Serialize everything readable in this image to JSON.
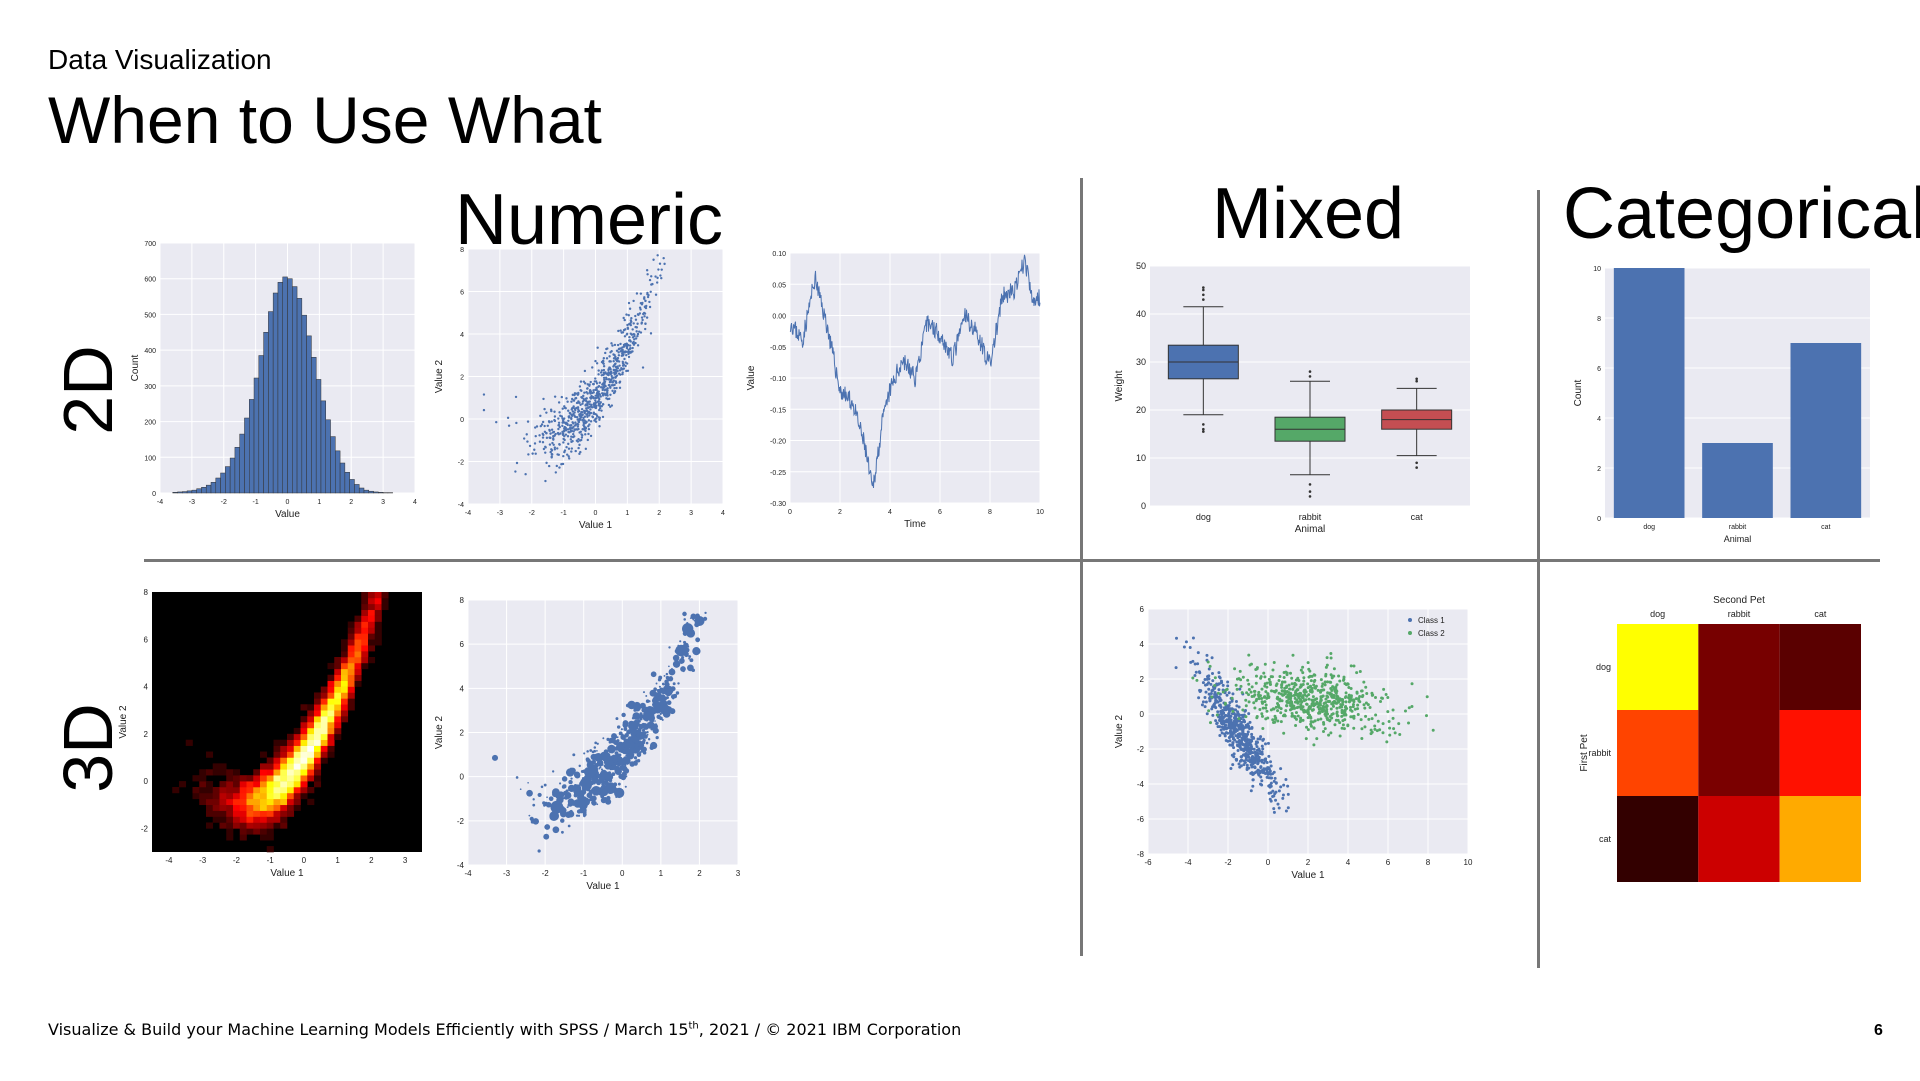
{
  "header": {
    "eyebrow": "Data Visualization",
    "title": "When to Use What"
  },
  "sections": {
    "numeric": "Numeric",
    "mixed": "Mixed",
    "categorical": "Categorical"
  },
  "rows": {
    "d2": "2D",
    "d3": "3D"
  },
  "footer": {
    "text_pre": "Visualize & Build your Machine Learning Models Efficiently with SPSS / March 15",
    "text_sup": "th",
    "text_post": ", 2021 / © 2021 IBM Corporation",
    "page": "6"
  },
  "colors": {
    "seaborn_blue": "#4c72b0",
    "seaborn_green": "#55a868",
    "seaborn_red": "#c44e52",
    "panel_bg": "#eaeaf2",
    "divider": "#777777"
  },
  "chart_data": [
    {
      "id": "histogram",
      "type": "bar",
      "xlabel": "Value",
      "ylabel": "Count",
      "xlim": [
        -4,
        4
      ],
      "ylim": [
        0,
        700
      ],
      "xticks": [
        "-4",
        "-3",
        "-2",
        "-1",
        "0",
        "1",
        "2",
        "3",
        "4"
      ],
      "yticks": [
        "0",
        "100",
        "200",
        "300",
        "400",
        "500",
        "600",
        "700"
      ],
      "bin_start": -3.6,
      "bin_width": 0.15,
      "values": [
        2,
        3,
        4,
        6,
        8,
        12,
        16,
        22,
        30,
        42,
        56,
        74,
        98,
        128,
        165,
        210,
        262,
        322,
        385,
        450,
        508,
        560,
        590,
        605,
        600,
        578,
        545,
        498,
        440,
        380,
        318,
        258,
        205,
        158,
        118,
        84,
        58,
        38,
        24,
        14,
        8,
        5,
        3,
        2,
        1,
        1,
        0,
        0
      ],
      "grid": true
    },
    {
      "id": "scatter-numeric",
      "type": "scatter",
      "xlabel": "Value 1",
      "ylabel": "Value 2",
      "xlim": [
        -4,
        4
      ],
      "ylim": [
        -4,
        8
      ],
      "xticks": [
        "-4",
        "-3",
        "-2",
        "-1",
        "0",
        "1",
        "2",
        "3",
        "4"
      ],
      "yticks": [
        "-4",
        "-2",
        "0",
        "2",
        "4",
        "6",
        "8"
      ],
      "relationship": "y ≈ 0.5·(x+2)² − 1 with noise, n≈800",
      "grid": true
    },
    {
      "id": "time-series",
      "type": "line",
      "xlabel": "Time",
      "ylabel": "Value",
      "xlim": [
        0,
        10
      ],
      "ylim": [
        -0.3,
        0.1
      ],
      "xticks": [
        "0",
        "2",
        "4",
        "6",
        "8",
        "10"
      ],
      "yticks": [
        "0.10",
        "0.05",
        "0.00",
        "-0.05",
        "-0.10",
        "-0.15",
        "-0.20",
        "-0.25",
        "-0.30"
      ],
      "anchors": [
        [
          0,
          -0.01
        ],
        [
          0.5,
          -0.04
        ],
        [
          1.0,
          0.06
        ],
        [
          1.5,
          -0.02
        ],
        [
          2.0,
          -0.12
        ],
        [
          2.5,
          -0.14
        ],
        [
          3.0,
          -0.21
        ],
        [
          3.3,
          -0.28
        ],
        [
          3.7,
          -0.17
        ],
        [
          4.0,
          -0.12
        ],
        [
          4.5,
          -0.07
        ],
        [
          5.0,
          -0.1
        ],
        [
          5.5,
          -0.01
        ],
        [
          6.0,
          -0.03
        ],
        [
          6.5,
          -0.07
        ],
        [
          7.0,
          0.0
        ],
        [
          7.5,
          -0.03
        ],
        [
          8.0,
          -0.08
        ],
        [
          8.5,
          0.03
        ],
        [
          9.0,
          0.04
        ],
        [
          9.4,
          0.09
        ],
        [
          9.7,
          0.02
        ],
        [
          10.0,
          0.03
        ]
      ],
      "grid": true
    },
    {
      "id": "boxplot",
      "type": "box",
      "xlabel": "Animal",
      "ylabel": "Weight",
      "ylim": [
        0,
        50
      ],
      "yticks": [
        "0",
        "10",
        "20",
        "30",
        "40",
        "50"
      ],
      "categories": [
        "dog",
        "rabbit",
        "cat"
      ],
      "boxes": [
        {
          "q1": 26.5,
          "median": 30,
          "q3": 33.5,
          "whisker_low": 19,
          "whisker_high": 41.5,
          "outliers": [
            16,
            15.5,
            17,
            43,
            44,
            45,
            45.5
          ],
          "color": "#4c72b0"
        },
        {
          "q1": 13.5,
          "median": 16,
          "q3": 18.5,
          "whisker_low": 6.5,
          "whisker_high": 26,
          "outliers": [
            4.5,
            3,
            2,
            27,
            28
          ],
          "color": "#55a868"
        },
        {
          "q1": 16,
          "median": 18,
          "q3": 20,
          "whisker_low": 10.5,
          "whisker_high": 24.5,
          "outliers": [
            9,
            8,
            26,
            26.5
          ],
          "color": "#c44e52"
        }
      ],
      "grid": true
    },
    {
      "id": "bar-categorical",
      "type": "bar",
      "xlabel": "Animal",
      "ylabel": "Count",
      "ylim": [
        0,
        10
      ],
      "yticks": [
        "0",
        "2",
        "4",
        "6",
        "8",
        "10"
      ],
      "categories": [
        "dog",
        "rabbit",
        "cat"
      ],
      "values": [
        10,
        3,
        7
      ],
      "grid": true
    },
    {
      "id": "hexbin-density",
      "type": "heatmap",
      "xlabel": "Value 1",
      "ylabel": "Value 2",
      "xlim": [
        -4.5,
        3.5
      ],
      "ylim": [
        -3,
        8
      ],
      "xticks": [
        "-4",
        "-3",
        "-2",
        "-1",
        "0",
        "1",
        "2",
        "3"
      ],
      "yticks": [
        "-2",
        "0",
        "2",
        "4",
        "6",
        "8"
      ],
      "colormap": "hot",
      "grid": false
    },
    {
      "id": "bubble-scatter",
      "type": "scatter",
      "xlabel": "Value 1",
      "ylabel": "Value 2",
      "xlim": [
        -4,
        3
      ],
      "ylim": [
        -4,
        8
      ],
      "xticks": [
        "-4",
        "-3",
        "-2",
        "-1",
        "0",
        "1",
        "2",
        "3"
      ],
      "yticks": [
        "-4",
        "-2",
        "0",
        "2",
        "4",
        "6",
        "8"
      ],
      "relationship": "same relationship as numeric scatter, point size encodes third variable",
      "grid": true
    },
    {
      "id": "class-scatter",
      "type": "scatter",
      "xlabel": "Value 1",
      "ylabel": "Value 2",
      "xlim": [
        -6,
        10
      ],
      "ylim": [
        -8,
        6
      ],
      "xticks": [
        "-6",
        "-4",
        "-2",
        "0",
        "2",
        "4",
        "6",
        "8",
        "10"
      ],
      "yticks": [
        "-8",
        "-6",
        "-4",
        "-2",
        "0",
        "2",
        "4",
        "6"
      ],
      "series": [
        {
          "name": "Class 1",
          "color": "#4c72b0",
          "center": [
            -1.5,
            -1
          ],
          "spread": "elongated down-right"
        },
        {
          "name": "Class 2",
          "color": "#55a868",
          "center": [
            2,
            0.8
          ],
          "spread": "horizontal ellipse"
        }
      ],
      "legend": "top-right",
      "grid": true
    },
    {
      "id": "pet-heatmap",
      "type": "heatmap",
      "title": "Second Pet",
      "ylabel": "First Pet",
      "columns": [
        "dog",
        "rabbit",
        "cat"
      ],
      "rows": [
        "dog",
        "rabbit",
        "cat"
      ],
      "cells": [
        [
          "#ffff00",
          "#770000",
          "#5a0000"
        ],
        [
          "#ff4400",
          "#7a0000",
          "#ff1100"
        ],
        [
          "#330000",
          "#cc0000",
          "#ffaa00"
        ]
      ],
      "grid": false
    }
  ]
}
